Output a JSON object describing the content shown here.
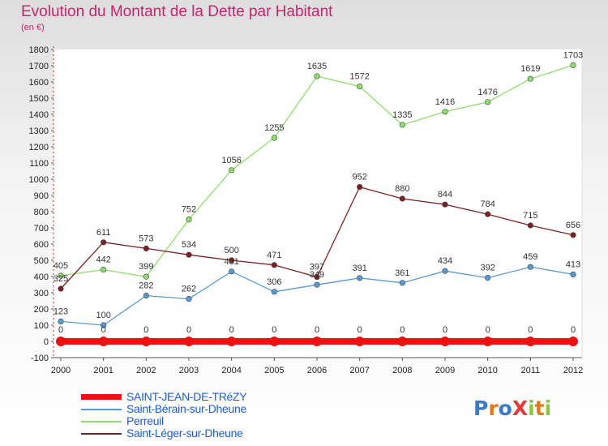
{
  "header": {
    "title": "Evolution du Montant de la Dette par Habitant",
    "subtitle": "(en €)"
  },
  "logo": {
    "text": "Proxiti",
    "letters": [
      {
        "char": "P",
        "color": "#3a78c8"
      },
      {
        "char": "r",
        "color": "#e07a1c"
      },
      {
        "char": "o",
        "color": "#3a78c8"
      },
      {
        "char": "X",
        "color": "#e03a3a"
      },
      {
        "char": "i",
        "color": "#8cc63e"
      },
      {
        "char": "t",
        "color": "#e07a1c"
      },
      {
        "char": "i",
        "color": "#8cc63e"
      }
    ]
  },
  "chart_data": {
    "type": "line",
    "title": "Evolution du Montant de la Dette par Habitant",
    "subtitle": "(en €)",
    "xlabel": "",
    "ylabel": "",
    "x": [
      "2000",
      "2001",
      "2002",
      "2003",
      "2004",
      "2005",
      "2006",
      "2007",
      "2008",
      "2009",
      "2010",
      "2011",
      "2012"
    ],
    "ylim": [
      -100,
      1800
    ],
    "yticks": [
      -100,
      0,
      100,
      200,
      300,
      400,
      500,
      600,
      700,
      800,
      900,
      1000,
      1100,
      1200,
      1300,
      1400,
      1500,
      1600,
      1700,
      1800
    ],
    "grid": false,
    "legend": "bottom-left",
    "series": [
      {
        "name": "SAINT-JEAN-DE-TRéZY",
        "color": "#ee1111",
        "values": [
          0,
          0,
          0,
          0,
          0,
          0,
          0,
          0,
          0,
          0,
          0,
          0,
          0
        ]
      },
      {
        "name": "Saint-Bérain-sur-Dheune",
        "color": "#5a9ad2",
        "values": [
          123,
          100,
          282,
          262,
          431,
          306,
          349,
          391,
          361,
          434,
          392,
          459,
          413
        ]
      },
      {
        "name": "Perreuil",
        "color": "#8ede6e",
        "values": [
          405,
          442,
          399,
          752,
          1056,
          1255,
          1635,
          1572,
          1335,
          1416,
          1476,
          1619,
          1703
        ]
      },
      {
        "name": "Saint-Léger-sur-Dheune",
        "color": "#7a2222",
        "values": [
          325,
          611,
          573,
          534,
          500,
          471,
          397,
          952,
          880,
          844,
          784,
          715,
          656
        ]
      }
    ]
  }
}
